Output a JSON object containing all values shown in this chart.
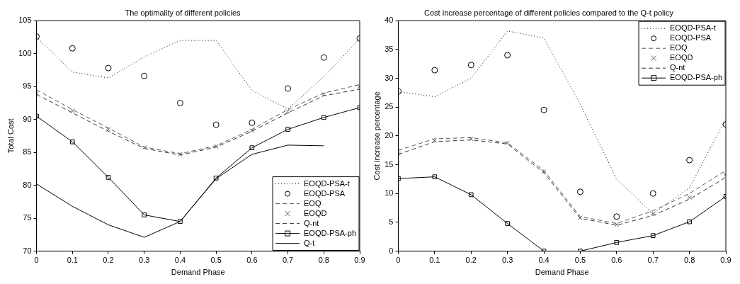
{
  "chart_data": [
    {
      "type": "line",
      "title": "The optimality of different policies",
      "xlabel": "Demand Phase",
      "ylabel": "Total Cost",
      "x": [
        0,
        0.1,
        0.2,
        0.3,
        0.4,
        0.5,
        0.6,
        0.7,
        0.8,
        0.9
      ],
      "xlim": [
        0,
        0.9
      ],
      "xticks": [
        0,
        0.1,
        0.2,
        0.3,
        0.4,
        0.5,
        0.6,
        0.7,
        0.8,
        0.9
      ],
      "ylim": [
        70,
        105
      ],
      "yticks": [
        70,
        75,
        80,
        85,
        90,
        95,
        100,
        105
      ],
      "grid": false,
      "legend": "bottom right",
      "series": [
        {
          "name": "EOQD-PSA-t",
          "color": "#000000",
          "line_style": "dotted",
          "marker": "none",
          "values": [
            102.5,
            97.2,
            96.3,
            99.5,
            102,
            102,
            94.4,
            91.6,
            96.5,
            102.3
          ]
        },
        {
          "name": "EOQD-PSA",
          "type": "scatter",
          "color": "#000000",
          "marker": "circle",
          "values": [
            102.6,
            100.8,
            97.8,
            96.6,
            92.5,
            89.2,
            89.5,
            94.7,
            99.4,
            102.3
          ]
        },
        {
          "name": "EOQ",
          "color": "#555555",
          "line_style": "dashed",
          "marker": "none",
          "values": [
            94.5,
            91.5,
            88.7,
            85.8,
            84.8,
            86,
            88.5,
            91.5,
            94,
            95.3
          ]
        },
        {
          "name": "EOQD",
          "type": "scatter",
          "color": "#555555",
          "marker": "cross",
          "values": [
            94,
            91.3,
            88.5,
            85.7,
            84.7,
            85.9,
            88.3,
            91.2,
            93.8,
            95
          ]
        },
        {
          "name": "Q-nt",
          "color": "#333333",
          "line_style": "dashed",
          "marker": "none",
          "values": [
            93.8,
            91,
            88.2,
            85.6,
            84.6,
            85.8,
            88.2,
            91,
            93.6,
            94.6
          ]
        },
        {
          "name": "EOQD-PSA-ph",
          "color": "#000000",
          "line_style": "solid",
          "marker": "square",
          "values": [
            90.5,
            86.6,
            81.2,
            75.5,
            74.5,
            81.1,
            85.7,
            88.5,
            90.3,
            91.8
          ]
        },
        {
          "name": "Q-t",
          "color": "#000000",
          "line_style": "solid",
          "marker": "none",
          "values": [
            80.2,
            76.8,
            74,
            72.1,
            74.5,
            81,
            84.7,
            86.1,
            86,
            null
          ]
        }
      ]
    },
    {
      "type": "line",
      "title": "Cost increase percentage of different policies compared to the Q-t policy",
      "xlabel": "Demand Phase",
      "ylabel": "Cost increase percentage",
      "x": [
        0,
        0.1,
        0.2,
        0.3,
        0.4,
        0.5,
        0.6,
        0.7,
        0.8,
        0.9
      ],
      "xlim": [
        0,
        0.9
      ],
      "xticks": [
        0,
        0.1,
        0.2,
        0.3,
        0.4,
        0.5,
        0.6,
        0.7,
        0.8,
        0.9
      ],
      "ylim": [
        0,
        40
      ],
      "yticks": [
        0,
        5,
        10,
        15,
        20,
        25,
        30,
        35,
        40
      ],
      "grid": false,
      "legend": "top right",
      "series": [
        {
          "name": "EOQD-PSA-t",
          "color": "#000000",
          "line_style": "dotted",
          "marker": "none",
          "values": [
            27.7,
            26.8,
            30,
            38.2,
            37,
            25.5,
            12.5,
            6.5,
            11,
            23
          ]
        },
        {
          "name": "EOQD-PSA",
          "type": "scatter",
          "color": "#000000",
          "marker": "circle",
          "values": [
            27.7,
            31.4,
            32.3,
            34,
            24.5,
            10.3,
            6,
            10,
            15.8,
            22
          ]
        },
        {
          "name": "EOQ",
          "color": "#555555",
          "line_style": "dashed",
          "marker": "none",
          "values": [
            17.5,
            19.5,
            19.7,
            18.8,
            14,
            6,
            4.8,
            7,
            10,
            14
          ]
        },
        {
          "name": "EOQD",
          "type": "scatter",
          "color": "#555555",
          "marker": "cross",
          "values": [
            17,
            19.2,
            19.5,
            18.8,
            13.8,
            5.8,
            4.6,
            6.5,
            9.3,
            13.3
          ]
        },
        {
          "name": "Q-nt",
          "color": "#333333",
          "line_style": "dashed",
          "marker": "none",
          "values": [
            16.8,
            19,
            19.3,
            18.6,
            13.6,
            5.7,
            4.5,
            6.2,
            9,
            12.8
          ]
        },
        {
          "name": "EOQD-PSA-ph",
          "color": "#000000",
          "line_style": "solid",
          "marker": "square",
          "values": [
            12.6,
            12.9,
            9.8,
            4.8,
            0,
            0,
            1.5,
            2.7,
            5.1,
            9.5
          ]
        }
      ]
    }
  ]
}
